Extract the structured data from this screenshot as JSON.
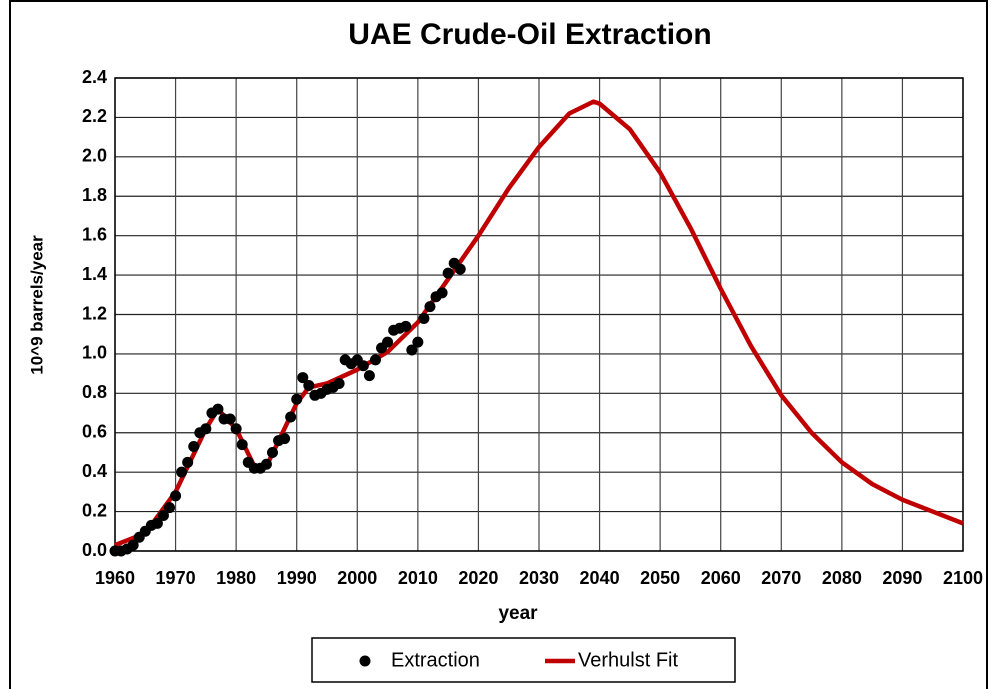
{
  "chart_data": {
    "type": "line",
    "title": "UAE Crude-Oil Extraction",
    "x_label": "year",
    "y_label": "10^9 barrels/year",
    "xlim": [
      1960,
      2100
    ],
    "ylim": [
      0,
      2.4
    ],
    "xticks": [
      1960,
      1970,
      1980,
      1990,
      2000,
      2010,
      2020,
      2030,
      2040,
      2050,
      2060,
      2070,
      2080,
      2090,
      2100
    ],
    "yticks": [
      {
        "value": 0,
        "label": "0.0"
      },
      0.2,
      0.4,
      0.6,
      0.8,
      {
        "value": 1,
        "label": "1.0"
      },
      1.2,
      1.4,
      1.6,
      1.8,
      {
        "value": 2,
        "label": "2.0"
      },
      2.2,
      2.4
    ],
    "grid": true,
    "legend": "bottom",
    "series": [
      {
        "name": "Extraction",
        "color": "#000000",
        "mode": "markers",
        "x": [
          1960,
          1961,
          1962,
          1963,
          1964,
          1965,
          1966,
          1967,
          1968,
          1969,
          1970,
          1971,
          1972,
          1973,
          1974,
          1975,
          1976,
          1977,
          1978,
          1979,
          1980,
          1981,
          1982,
          1983,
          1984,
          1985,
          1986,
          1987,
          1988,
          1989,
          1990,
          1991,
          1992,
          1993,
          1994,
          1995,
          1996,
          1997,
          1998,
          1999,
          2000,
          2001,
          2002,
          2003,
          2004,
          2005,
          2006,
          2007,
          2008,
          2009,
          2010,
          2011,
          2012,
          2013,
          2014,
          2015,
          2016,
          2017
        ],
        "values": [
          0.0,
          0.0,
          0.01,
          0.03,
          0.07,
          0.1,
          0.13,
          0.14,
          0.18,
          0.22,
          0.28,
          0.4,
          0.45,
          0.53,
          0.6,
          0.62,
          0.7,
          0.72,
          0.67,
          0.67,
          0.62,
          0.54,
          0.45,
          0.42,
          0.42,
          0.44,
          0.5,
          0.56,
          0.57,
          0.68,
          0.77,
          0.88,
          0.84,
          0.79,
          0.8,
          0.82,
          0.83,
          0.85,
          0.97,
          0.95,
          0.97,
          0.94,
          0.89,
          0.97,
          1.03,
          1.06,
          1.12,
          1.13,
          1.14,
          1.02,
          1.06,
          1.18,
          1.24,
          1.29,
          1.31,
          1.41,
          1.46,
          1.43
        ]
      },
      {
        "name": "Verhulst Fit",
        "color": "#c00000",
        "mode": "line",
        "x": [
          1960,
          1965,
          1970,
          1975,
          1977,
          1980,
          1983,
          1985,
          1990,
          1992,
          1995,
          2000,
          2005,
          2010,
          2015,
          2020,
          2025,
          2030,
          2035,
          2039,
          2040,
          2045,
          2050,
          2055,
          2060,
          2065,
          2070,
          2075,
          2080,
          2085,
          2090,
          2095,
          2100
        ],
        "values": [
          0.03,
          0.09,
          0.3,
          0.62,
          0.72,
          0.62,
          0.43,
          0.43,
          0.75,
          0.83,
          0.85,
          0.92,
          1.01,
          1.16,
          1.38,
          1.6,
          1.84,
          2.05,
          2.22,
          2.28,
          2.27,
          2.14,
          1.92,
          1.64,
          1.33,
          1.04,
          0.79,
          0.6,
          0.45,
          0.34,
          0.26,
          0.2,
          0.14
        ]
      }
    ]
  }
}
